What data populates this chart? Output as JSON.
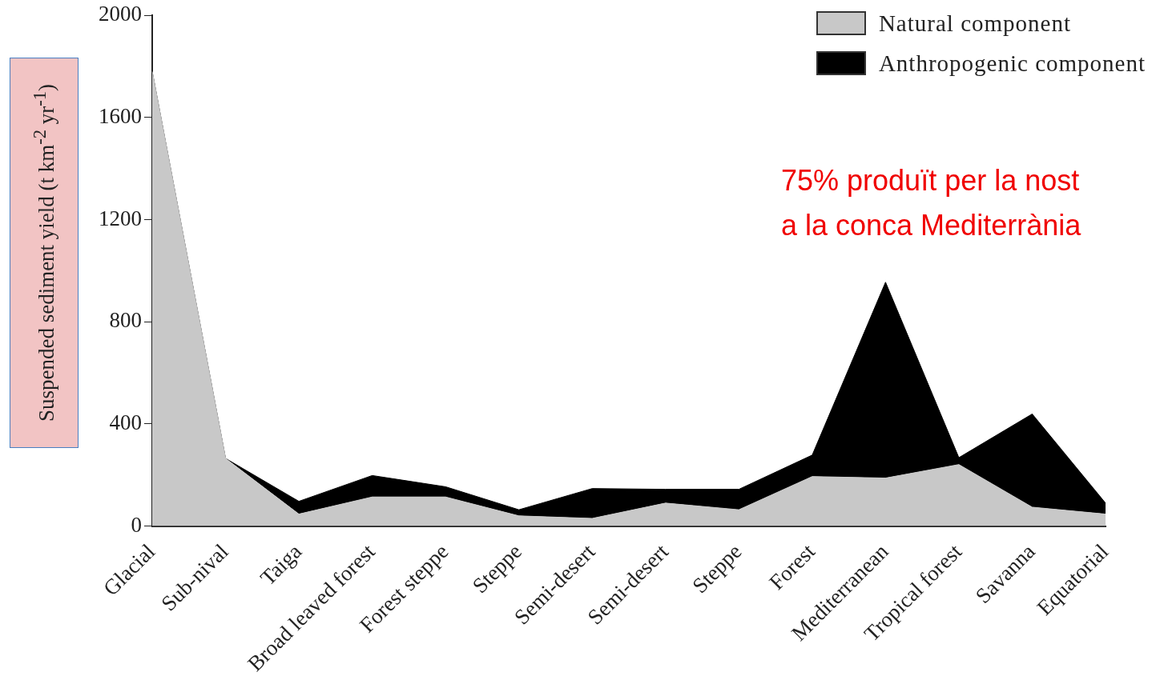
{
  "chart_data": {
    "type": "area",
    "stacked": true,
    "ylabel": "Suspended sediment yield (t km$^{-2}$ yr$^{-1}$)",
    "categories": [
      "Glacial",
      "Sub-nival",
      "Taiga",
      "Broad leaved forest",
      "Forest steppe",
      "Steppe",
      "Semi-desert",
      "Semi-desert",
      "Steppe",
      "Forest",
      "Mediterranean",
      "Tropical forest",
      "Savanna",
      "Equatorial"
    ],
    "series": [
      {
        "name": "Natural component",
        "color": "#c8c8c8",
        "values": [
          1780,
          265,
          47,
          114,
          114,
          40,
          30,
          90,
          64,
          194,
          188,
          241,
          74,
          47
        ]
      },
      {
        "name": "Anthropogenic component",
        "color": "#000000",
        "values": [
          0,
          0,
          50,
          84,
          40,
          24,
          117,
          54,
          80,
          84,
          767,
          27,
          365,
          43
        ]
      }
    ],
    "ylim": [
      0,
      2000
    ],
    "yticks": [
      0,
      400,
      800,
      1200,
      1600,
      2000
    ],
    "grid": false,
    "legend": "top right",
    "annotations": [
      "75% produït per la nost\na la conca Mediterrània"
    ]
  }
}
